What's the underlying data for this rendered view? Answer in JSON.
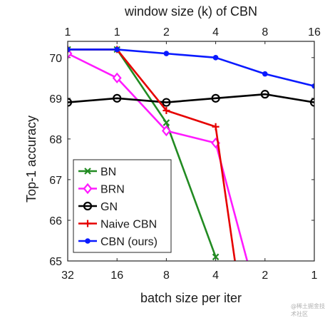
{
  "chart_data": {
    "type": "line",
    "title": "",
    "top_axis_label": "window size (k) of CBN",
    "xlabel": "batch size per iter",
    "ylabel": "Top-1 accuracy",
    "x_ticks_bottom": [
      "32",
      "16",
      "8",
      "4",
      "2",
      "1"
    ],
    "x_ticks_top": [
      "1",
      "1",
      "2",
      "4",
      "8",
      "16"
    ],
    "ylim": [
      65,
      70.4
    ],
    "y_ticks": [
      "65",
      "66",
      "67",
      "68",
      "69",
      "70"
    ],
    "grid": false,
    "legend_position": "bottom-left",
    "series": [
      {
        "name": "BN",
        "color": "#228b22",
        "marker": "x",
        "points": [
          [
            0,
            70.2
          ],
          [
            1,
            70.2
          ],
          [
            2,
            68.4
          ],
          [
            3,
            65.1
          ]
        ]
      },
      {
        "name": "BRN",
        "color": "#ff1aff",
        "marker": "diamond",
        "points": [
          [
            0,
            70.1
          ],
          [
            1,
            69.5
          ],
          [
            2,
            68.2
          ],
          [
            3,
            67.9
          ],
          [
            3.75,
            64.5
          ]
        ]
      },
      {
        "name": "GN",
        "color": "#000000",
        "marker": "circle",
        "points": [
          [
            0,
            68.9
          ],
          [
            1,
            69.0
          ],
          [
            2,
            68.9
          ],
          [
            3,
            69.0
          ],
          [
            4,
            69.1
          ],
          [
            5,
            68.9
          ]
        ]
      },
      {
        "name": "Naive CBN",
        "color": "#e60000",
        "marker": "plus",
        "points": [
          [
            0,
            70.2
          ],
          [
            1,
            70.2
          ],
          [
            2,
            68.7
          ],
          [
            3,
            68.3
          ],
          [
            3.45,
            64.5
          ]
        ]
      },
      {
        "name": "CBN (ours)",
        "color": "#0a1aff",
        "marker": "dot",
        "points": [
          [
            0,
            70.2
          ],
          [
            1,
            70.2
          ],
          [
            2,
            70.1
          ],
          [
            3,
            70.0
          ],
          [
            4,
            69.6
          ],
          [
            5,
            69.3
          ]
        ]
      }
    ]
  },
  "watermark": "@稀土掘金技术社区"
}
